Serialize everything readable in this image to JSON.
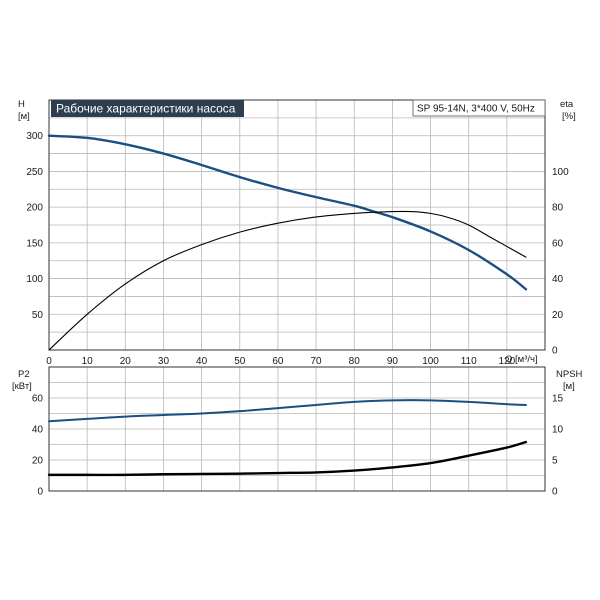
{
  "colors": {
    "grid": "#b8b8b8",
    "frame": "#333333",
    "title_bg": "#2d3e50",
    "blue_series": "#1a4f82",
    "black_series": "#000000"
  },
  "chart_data": [
    {
      "type": "line",
      "title": "Рабочие характеристики насоса",
      "model_label": "SP 95-14N, 3*400 V, 50Hz",
      "grid": true,
      "x_axis": {
        "label": "Q [м³/ч]",
        "ticks": [
          "0",
          "10",
          "20",
          "30",
          "40",
          "50",
          "60",
          "70",
          "80",
          "90",
          "100",
          "110",
          "120"
        ],
        "range": [
          0,
          130
        ]
      },
      "y_left": {
        "label_line1": "H",
        "label_line2": "[м]",
        "ticks": [
          "50",
          "100",
          "150",
          "200",
          "250",
          "300"
        ],
        "range": [
          0,
          350
        ]
      },
      "y_right": {
        "label_line1": "eta",
        "label_line2": "[%]",
        "ticks": [
          "0",
          "20",
          "40",
          "60",
          "80",
          "100"
        ],
        "range": [
          0,
          140
        ]
      },
      "series": [
        {
          "name": "H",
          "axis": "left",
          "color": "#1a4f82",
          "width": 2.4,
          "x": [
            0,
            10,
            20,
            30,
            40,
            50,
            60,
            70,
            80,
            85,
            90,
            100,
            110,
            120,
            125
          ],
          "y": [
            300,
            297,
            288,
            275,
            259,
            242,
            227,
            214,
            202,
            194,
            186,
            166,
            140,
            106,
            85
          ]
        },
        {
          "name": "eta",
          "axis": "right",
          "color": "#000000",
          "width": 1.1,
          "x": [
            0,
            10,
            20,
            30,
            40,
            50,
            60,
            70,
            80,
            90,
            95,
            100,
            105,
            110,
            115,
            120,
            125
          ],
          "y": [
            0,
            20,
            37,
            50,
            59,
            66,
            71,
            74.5,
            76.5,
            77.5,
            77.5,
            76.5,
            74,
            70,
            64,
            58,
            52
          ]
        }
      ]
    },
    {
      "type": "line",
      "grid": true,
      "x_axis": {
        "range": [
          0,
          130
        ]
      },
      "y_left": {
        "label_line1": "P2",
        "label_line2": "[кВт]",
        "ticks": [
          "0",
          "20",
          "40",
          "60"
        ],
        "range": [
          0,
          80
        ]
      },
      "y_right": {
        "label_line1": "NPSH",
        "label_line2": "[м]",
        "ticks": [
          "0",
          "5",
          "10",
          "15"
        ],
        "range": [
          0,
          20
        ]
      },
      "series": [
        {
          "name": "P2",
          "axis": "left",
          "color": "#1a4f82",
          "width": 2.0,
          "x": [
            0,
            10,
            20,
            30,
            40,
            50,
            60,
            70,
            80,
            90,
            100,
            110,
            120,
            125
          ],
          "y": [
            45,
            46.5,
            48,
            49,
            50,
            51.5,
            53.5,
            55.5,
            57.5,
            58.5,
            58.5,
            57.5,
            56,
            55.5
          ]
        },
        {
          "name": "NPSH",
          "axis": "right",
          "color": "#000000",
          "width": 2.4,
          "x": [
            0,
            10,
            20,
            30,
            40,
            50,
            60,
            70,
            80,
            90,
            100,
            110,
            120,
            125
          ],
          "y": [
            2.6,
            2.6,
            2.6,
            2.7,
            2.75,
            2.8,
            2.9,
            3.0,
            3.3,
            3.8,
            4.5,
            5.7,
            7.0,
            7.9
          ]
        }
      ]
    }
  ]
}
